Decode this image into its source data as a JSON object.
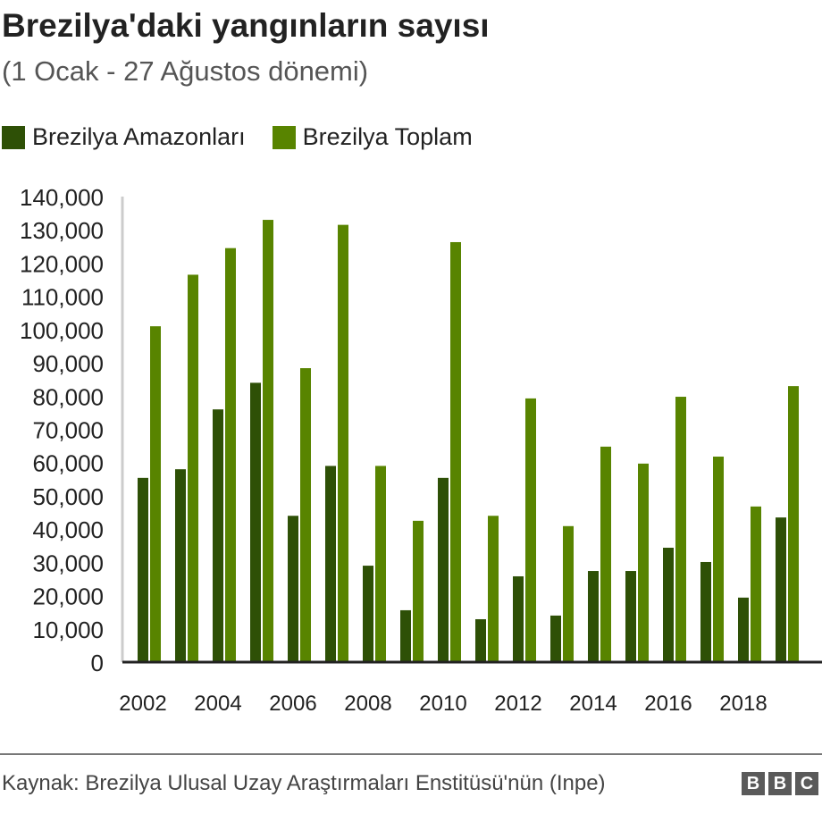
{
  "header": {
    "title": "Brezilya'daki yangınların sayısı",
    "subtitle": "(1 Ocak - 27 Ağustos dönemi)"
  },
  "footer": {
    "source": "Kaynak: Brezilya Ulusal Uzay Araştırmaları Enstitüsü'nün (Inpe)",
    "logo": "BBC"
  },
  "chart_data": {
    "type": "bar",
    "title": "Brezilya'daki yangınların sayısı",
    "subtitle": "(1 Ocak - 27 Ağustos dönemi)",
    "xlabel": "",
    "ylabel": "",
    "ylim": [
      0,
      140000
    ],
    "yticks": [
      "0",
      "10,000",
      "20,000",
      "30,000",
      "40,000",
      "50,000",
      "60,000",
      "70,000",
      "80,000",
      "90,000",
      "100,000",
      "110,000",
      "120,000",
      "130,000",
      "140,000"
    ],
    "categories": [
      "2002",
      "2003",
      "2004",
      "2005",
      "2006",
      "2007",
      "2008",
      "2009",
      "2010",
      "2011",
      "2012",
      "2013",
      "2014",
      "2015",
      "2016",
      "2017",
      "2018",
      "2019"
    ],
    "xtick_labels": [
      "2002",
      "2004",
      "2006",
      "2008",
      "2010",
      "2012",
      "2014",
      "2016",
      "2018"
    ],
    "legend_position": "top-left",
    "series": [
      {
        "name": "Brezilya Amazonları",
        "color": "#2e5006",
        "values": [
          55400,
          58000,
          76000,
          84000,
          44000,
          59000,
          29000,
          15600,
          55400,
          12900,
          25800,
          14000,
          27400,
          27400,
          34400,
          30100,
          19400,
          43500
        ]
      },
      {
        "name": "Brezilya Toplam",
        "color": "#588400",
        "values": [
          101000,
          116500,
          124500,
          133000,
          88400,
          131500,
          59000,
          42500,
          126300,
          44000,
          79300,
          40900,
          64800,
          59700,
          79800,
          61800,
          46800,
          83000
        ]
      }
    ]
  }
}
